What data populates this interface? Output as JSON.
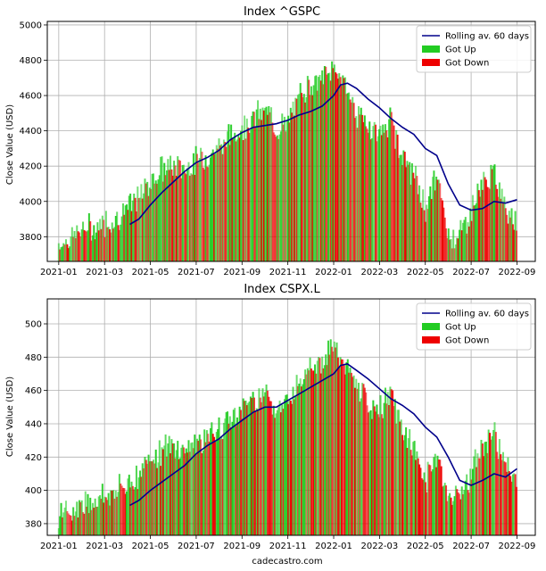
{
  "footer": "cadecastro.com",
  "colors": {
    "up": "#22cc22",
    "down": "#ee0000",
    "rolling": "#00008b",
    "grid": "#b0b0b0"
  },
  "chart_data": [
    {
      "type": "bar",
      "title": "Index ^GSPC",
      "ylabel": "Close Value (USD)",
      "xlabel": "",
      "ylim": [
        3660,
        5020
      ],
      "yticks": [
        3800,
        4000,
        4200,
        4400,
        4600,
        4800,
        5000
      ],
      "xlim": [
        -0.5,
        20.8
      ],
      "xticks": [
        0,
        2,
        4,
        6,
        8,
        10,
        12,
        14,
        16,
        18,
        20
      ],
      "xtick_labels": [
        "2021-01",
        "2021-03",
        "2021-05",
        "2021-07",
        "2021-09",
        "2021-11",
        "2022-01",
        "2022-03",
        "2022-05",
        "2022-07",
        "2022-09"
      ],
      "legend": {
        "position": "top-right",
        "entries": [
          "Rolling av. 60 days",
          "Got Up",
          "Got Down"
        ]
      },
      "series": [
        {
          "name": "Close",
          "x": [
            0,
            0.5,
            1,
            1.5,
            2,
            2.5,
            3,
            3.5,
            4,
            4.5,
            5,
            5.5,
            6,
            6.5,
            7,
            7.5,
            8,
            8.5,
            9,
            9.5,
            10,
            10.5,
            11,
            11.5,
            12,
            12.5,
            13,
            13.5,
            14,
            14.5,
            15,
            15.5,
            16,
            16.5,
            17,
            17.5,
            18,
            18.5,
            19,
            19.5,
            20
          ],
          "values": [
            3760,
            3790,
            3840,
            3850,
            3880,
            3900,
            3960,
            4020,
            4120,
            4180,
            4200,
            4190,
            4230,
            4260,
            4310,
            4370,
            4420,
            4470,
            4520,
            4420,
            4430,
            4600,
            4680,
            4690,
            4760,
            4670,
            4500,
            4430,
            4380,
            4460,
            4250,
            4150,
            3960,
            4150,
            3800,
            3810,
            3950,
            4100,
            4150,
            3980,
            3900
          ]
        },
        {
          "name": "Rolling av. 60 days",
          "x": [
            3.1,
            3.5,
            4,
            4.5,
            5,
            5.5,
            6,
            6.5,
            7,
            7.5,
            8,
            8.5,
            9,
            9.5,
            10,
            10.5,
            11,
            11.5,
            12,
            12.3,
            12.6,
            13,
            13.5,
            14,
            14.5,
            15,
            15.5,
            16,
            16.5,
            17,
            17.5,
            18,
            18.5,
            19,
            19.5,
            20
          ],
          "values": [
            3870,
            3900,
            3980,
            4050,
            4110,
            4170,
            4220,
            4250,
            4290,
            4350,
            4390,
            4420,
            4430,
            4440,
            4460,
            4490,
            4510,
            4540,
            4600,
            4660,
            4670,
            4640,
            4580,
            4530,
            4470,
            4420,
            4380,
            4300,
            4260,
            4100,
            3980,
            3950,
            3960,
            4000,
            3990,
            4010
          ]
        }
      ]
    },
    {
      "type": "bar",
      "title": "Index CSPX.L",
      "ylabel": "Close Value (USD)",
      "xlabel": "",
      "ylim": [
        373,
        515
      ],
      "yticks": [
        380,
        400,
        420,
        440,
        460,
        480,
        500
      ],
      "xlim": [
        -0.5,
        20.8
      ],
      "xticks": [
        0,
        2,
        4,
        6,
        8,
        10,
        12,
        14,
        16,
        18,
        20
      ],
      "xtick_labels": [
        "2021-01",
        "2021-03",
        "2021-05",
        "2021-07",
        "2021-09",
        "2021-11",
        "2022-01",
        "2022-03",
        "2022-05",
        "2022-07",
        "2022-09"
      ],
      "legend": {
        "position": "top-right",
        "entries": [
          "Rolling av. 60 days",
          "Got Up",
          "Got Down"
        ]
      },
      "series": [
        {
          "name": "Close",
          "x": [
            0,
            0.5,
            1,
            1.5,
            2,
            2.5,
            3,
            3.5,
            4,
            4.5,
            5,
            5.5,
            6,
            6.5,
            7,
            7.5,
            8,
            8.5,
            9,
            9.5,
            10,
            10.5,
            11,
            11.5,
            12,
            12.5,
            13,
            13.5,
            14,
            14.5,
            15,
            15.5,
            16,
            16.5,
            17,
            17.5,
            18,
            18.5,
            19,
            19.5,
            20
          ],
          "values": [
            384,
            386,
            392,
            394,
            397,
            399,
            404,
            410,
            420,
            424,
            426,
            425,
            429,
            432,
            436,
            443,
            450,
            455,
            460,
            450,
            452,
            468,
            476,
            478,
            486,
            476,
            462,
            452,
            448,
            458,
            436,
            425,
            405,
            423,
            395,
            397,
            410,
            425,
            436,
            413,
            405
          ]
        },
        {
          "name": "Rolling av. 60 days",
          "x": [
            3.1,
            3.5,
            4,
            4.5,
            5,
            5.5,
            6,
            6.5,
            7,
            7.5,
            8,
            8.5,
            9,
            9.5,
            10,
            10.5,
            11,
            11.5,
            12,
            12.3,
            12.6,
            13,
            13.5,
            14,
            14.5,
            15,
            15.5,
            16,
            16.5,
            17,
            17.5,
            18,
            18.5,
            19,
            19.5,
            20
          ],
          "values": [
            391,
            394,
            400,
            405,
            410,
            415,
            422,
            427,
            431,
            437,
            442,
            447,
            450,
            450,
            454,
            458,
            462,
            466,
            470,
            475,
            476,
            472,
            467,
            461,
            455,
            451,
            446,
            438,
            432,
            420,
            406,
            403,
            406,
            410,
            408,
            413
          ]
        }
      ]
    }
  ]
}
